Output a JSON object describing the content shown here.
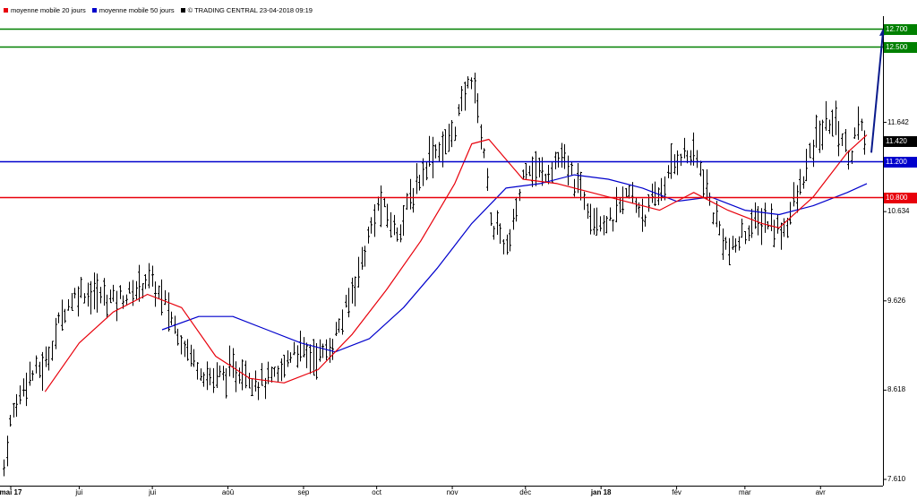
{
  "legend": {
    "ma20_label": "moyenne mobile 20 jours",
    "ma50_label": "moyenne mobile 50 jours",
    "source_label": "© TRADING CENTRAL 23-04-2018 09:19",
    "ma20_color": "#e8000b",
    "ma50_color": "#0000cc",
    "source_color": "#000000"
  },
  "chart_data": {
    "type": "ohlc",
    "y_range": [
      7.61,
      13.0
    ],
    "y_ticks": [
      "7.610",
      "8.618",
      "9.626",
      "10.634",
      "11.642"
    ],
    "x_ticks": [
      {
        "label": "mai 17",
        "bold": true
      },
      {
        "label": "jui",
        "bold": false
      },
      {
        "label": "jui",
        "bold": false
      },
      {
        "label": "aoû",
        "bold": false
      },
      {
        "label": "sep",
        "bold": false
      },
      {
        "label": "oct",
        "bold": false
      },
      {
        "label": "nov",
        "bold": false
      },
      {
        "label": "déc",
        "bold": false
      },
      {
        "label": "jan 18",
        "bold": true
      },
      {
        "label": "fév",
        "bold": false
      },
      {
        "label": "mar",
        "bold": false
      },
      {
        "label": "avr",
        "bold": false
      }
    ],
    "levels": [
      {
        "value": 12.7,
        "label": "12.700",
        "color": "#008000"
      },
      {
        "value": 12.5,
        "label": "12.500",
        "color": "#008000"
      },
      {
        "value": 11.2,
        "label": "11.200",
        "color": "#0000cc"
      },
      {
        "value": 10.8,
        "label": "10.800",
        "color": "#e8000b"
      }
    ],
    "last_price": {
      "value": 11.42,
      "label": "11.420",
      "color": "#000000"
    },
    "projection": {
      "from": 11.3,
      "to": 12.7,
      "color": "#0a1a8c"
    },
    "price_points": [
      [
        "2017-05-01",
        7.75
      ],
      [
        "2017-05-04",
        8.3
      ],
      [
        "2017-05-10",
        8.75
      ],
      [
        "2017-05-18",
        8.9
      ],
      [
        "2017-05-25",
        9.5
      ],
      [
        "2017-06-01",
        9.75
      ],
      [
        "2017-06-08",
        9.7
      ],
      [
        "2017-06-15",
        9.65
      ],
      [
        "2017-06-22",
        9.7
      ],
      [
        "2017-06-29",
        9.9
      ],
      [
        "2017-07-06",
        9.6
      ],
      [
        "2017-07-10",
        9.35
      ],
      [
        "2017-07-17",
        9.0
      ],
      [
        "2017-07-24",
        8.75
      ],
      [
        "2017-07-31",
        8.8
      ],
      [
        "2017-08-07",
        8.85
      ],
      [
        "2017-08-14",
        8.7
      ],
      [
        "2017-08-21",
        8.75
      ],
      [
        "2017-08-28",
        9.1
      ],
      [
        "2017-09-04",
        9.0
      ],
      [
        "2017-09-11",
        9.05
      ],
      [
        "2017-09-18",
        9.5
      ],
      [
        "2017-09-25",
        10.1
      ],
      [
        "2017-10-02",
        10.75
      ],
      [
        "2017-10-09",
        10.4
      ],
      [
        "2017-10-16",
        10.85
      ],
      [
        "2017-10-23",
        11.3
      ],
      [
        "2017-10-30",
        11.4
      ],
      [
        "2017-11-02",
        11.6
      ],
      [
        "2017-11-09",
        12.2
      ],
      [
        "2017-11-14",
        11.3
      ],
      [
        "2017-11-17",
        10.5
      ],
      [
        "2017-11-24",
        10.2
      ],
      [
        "2017-12-01",
        11.2
      ],
      [
        "2017-12-08",
        11.05
      ],
      [
        "2017-12-15",
        11.25
      ],
      [
        "2017-12-22",
        10.95
      ],
      [
        "2017-12-29",
        10.6
      ],
      [
        "2018-01-05",
        10.5
      ],
      [
        "2018-01-12",
        10.85
      ],
      [
        "2018-01-19",
        10.6
      ],
      [
        "2018-01-26",
        10.9
      ],
      [
        "2018-02-02",
        11.3
      ],
      [
        "2018-02-09",
        11.25
      ],
      [
        "2018-02-16",
        10.6
      ],
      [
        "2018-02-23",
        10.15
      ],
      [
        "2018-03-02",
        10.45
      ],
      [
        "2018-03-09",
        10.55
      ],
      [
        "2018-03-16",
        10.4
      ],
      [
        "2018-03-23",
        10.85
      ],
      [
        "2018-03-30",
        11.45
      ],
      [
        "2018-04-06",
        11.7
      ],
      [
        "2018-04-13",
        11.25
      ],
      [
        "2018-04-16",
        11.6
      ],
      [
        "2018-04-20",
        11.42
      ]
    ],
    "ma20_points": [
      [
        "2017-05-18",
        8.6
      ],
      [
        "2017-06-01",
        9.15
      ],
      [
        "2017-06-15",
        9.5
      ],
      [
        "2017-06-29",
        9.7
      ],
      [
        "2017-07-13",
        9.55
      ],
      [
        "2017-07-27",
        9.0
      ],
      [
        "2017-08-10",
        8.75
      ],
      [
        "2017-08-24",
        8.7
      ],
      [
        "2017-09-07",
        8.85
      ],
      [
        "2017-09-21",
        9.25
      ],
      [
        "2017-10-05",
        9.75
      ],
      [
        "2017-10-19",
        10.3
      ],
      [
        "2017-11-02",
        10.95
      ],
      [
        "2017-11-09",
        11.4
      ],
      [
        "2017-11-16",
        11.45
      ],
      [
        "2017-11-30",
        11.0
      ],
      [
        "2017-12-14",
        10.95
      ],
      [
        "2017-12-28",
        10.85
      ],
      [
        "2018-01-11",
        10.75
      ],
      [
        "2018-01-25",
        10.65
      ],
      [
        "2018-02-08",
        10.85
      ],
      [
        "2018-02-22",
        10.65
      ],
      [
        "2018-03-08",
        10.5
      ],
      [
        "2018-03-15",
        10.45
      ],
      [
        "2018-03-29",
        10.8
      ],
      [
        "2018-04-12",
        11.3
      ],
      [
        "2018-04-20",
        11.5
      ]
    ],
    "ma50_points": [
      [
        "2017-07-05",
        9.3
      ],
      [
        "2017-07-20",
        9.45
      ],
      [
        "2017-08-03",
        9.45
      ],
      [
        "2017-08-17",
        9.3
      ],
      [
        "2017-08-31",
        9.15
      ],
      [
        "2017-09-14",
        9.05
      ],
      [
        "2017-09-28",
        9.2
      ],
      [
        "2017-10-12",
        9.55
      ],
      [
        "2017-10-26",
        10.0
      ],
      [
        "2017-11-09",
        10.5
      ],
      [
        "2017-11-23",
        10.9
      ],
      [
        "2017-12-07",
        10.95
      ],
      [
        "2017-12-21",
        11.05
      ],
      [
        "2018-01-04",
        11.0
      ],
      [
        "2018-01-18",
        10.9
      ],
      [
        "2018-02-01",
        10.75
      ],
      [
        "2018-02-15",
        10.8
      ],
      [
        "2018-03-01",
        10.65
      ],
      [
        "2018-03-15",
        10.6
      ],
      [
        "2018-03-29",
        10.7
      ],
      [
        "2018-04-12",
        10.85
      ],
      [
        "2018-04-20",
        10.95
      ]
    ]
  }
}
